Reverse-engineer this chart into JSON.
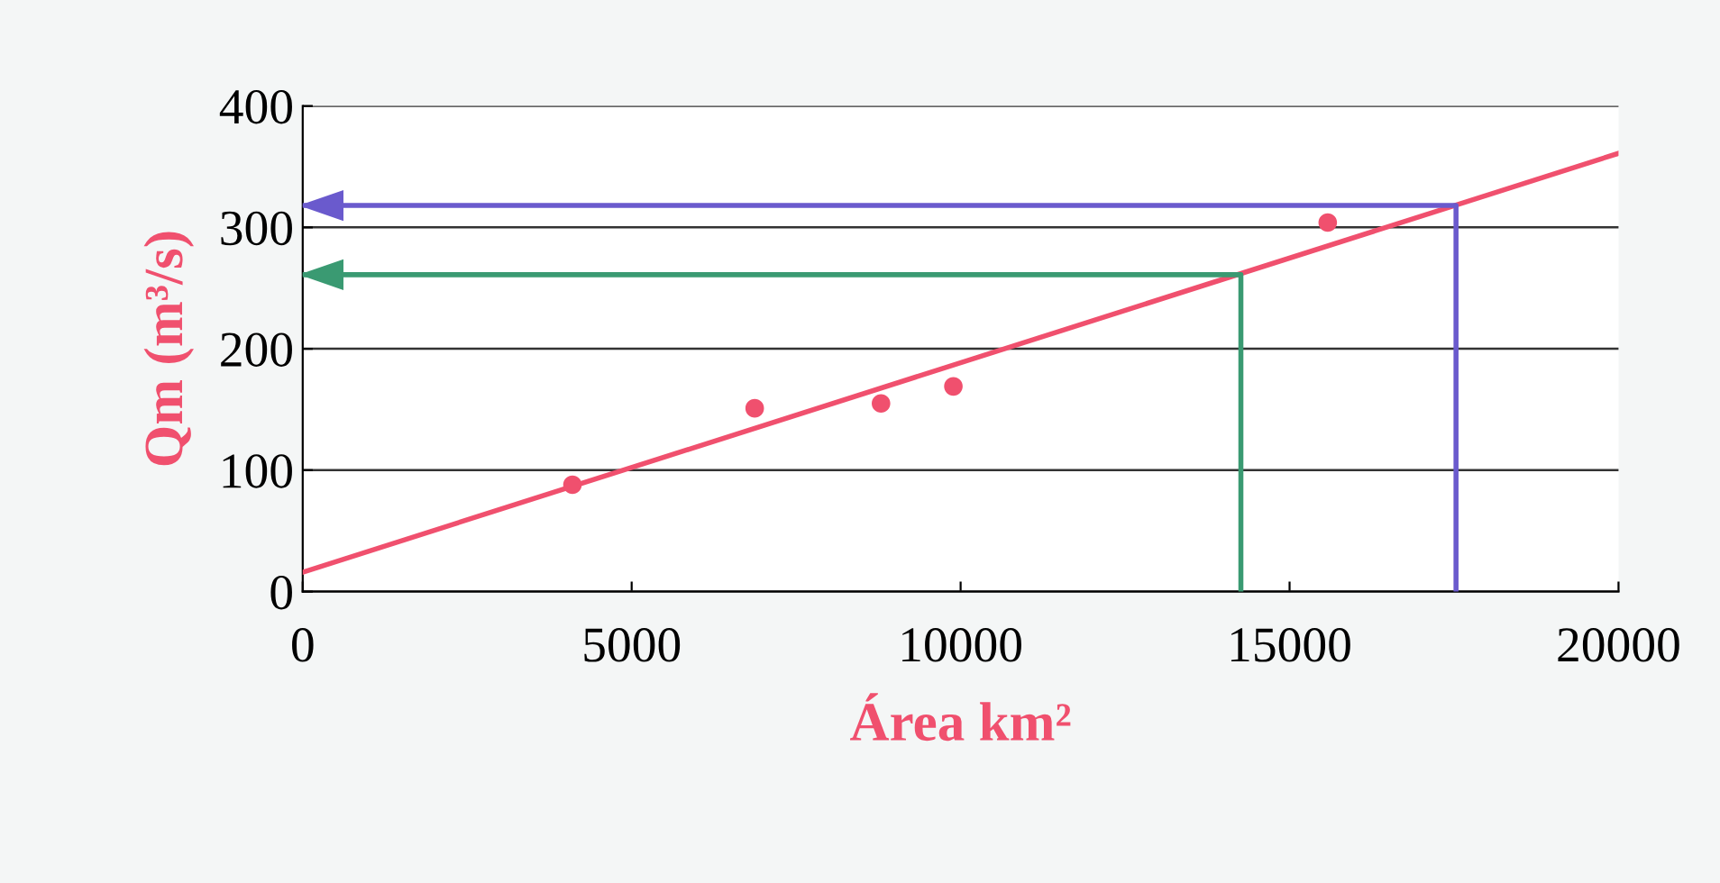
{
  "chart_data": {
    "type": "scatter",
    "xlabel": "Área km²",
    "ylabel": "Qm (m³/s)",
    "xlim": [
      0,
      20000
    ],
    "xticks": [
      0,
      5000,
      10000,
      15000,
      20000
    ],
    "ylim": [
      0,
      400
    ],
    "yticks": [
      0,
      100,
      200,
      300,
      400
    ],
    "grid": "y",
    "marker": "circle",
    "series": [
      {
        "color": "#f0506e",
        "x": [
          4100,
          6870,
          8790,
          9890,
          15580
        ],
        "values": [
          88,
          151,
          155,
          169,
          304
        ]
      },
      {
        "type": "line",
        "color": "#f0506e",
        "x": [
          0,
          20000
        ],
        "values": [
          16,
          361
        ],
        "marker": "none"
      },
      {
        "type": "line",
        "color": "#6a5acd",
        "x": [
          0,
          17530,
          17530
        ],
        "values": [
          318,
          318,
          0
        ],
        "marker": "none"
      },
      {
        "type": "line",
        "color": "#3a9a72",
        "x": [
          0,
          14260,
          14260
        ],
        "values": [
          261,
          261,
          0
        ],
        "marker": "none"
      }
    ]
  }
}
